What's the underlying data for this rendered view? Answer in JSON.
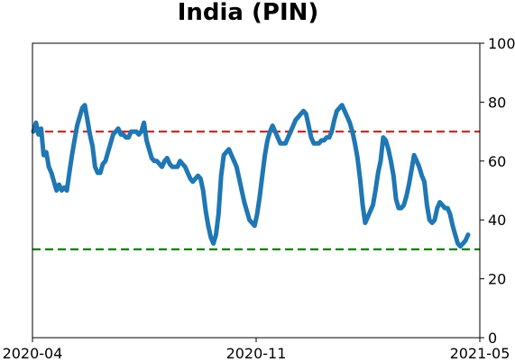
{
  "chart_data": {
    "type": "line",
    "title": "India (PIN)",
    "xlabel": "",
    "ylabel": "",
    "ylim": [
      0,
      100
    ],
    "y_axis_side": "right",
    "y_ticks": [
      "0",
      "20",
      "40",
      "60",
      "80",
      "100"
    ],
    "x_ticks": [
      "2020-04",
      "2020-11",
      "2021-05"
    ],
    "grid": false,
    "legend": "none",
    "line_color": "#1f77b4",
    "reference_lines": [
      {
        "value": 70,
        "color": "#d62728",
        "style": "dashed"
      },
      {
        "value": 30,
        "color": "#008000",
        "style": "dashed"
      }
    ],
    "series": [
      {
        "values": [
          70,
          73,
          69,
          71,
          62,
          63,
          58,
          56,
          53,
          50,
          52,
          50,
          51,
          50,
          56,
          62,
          67,
          72,
          75,
          78,
          79,
          74,
          69,
          65,
          58,
          56,
          56,
          59,
          60,
          63,
          66,
          69,
          70,
          71,
          69,
          69,
          68,
          68,
          70,
          70,
          70,
          69,
          70,
          73,
          67,
          64,
          61,
          60,
          60,
          59,
          58,
          60,
          61,
          59,
          58,
          58,
          58,
          60,
          59,
          58,
          56,
          54,
          53,
          54,
          55,
          54,
          50,
          43,
          38,
          34,
          32,
          35,
          42,
          55,
          62,
          63,
          64,
          62,
          60,
          58,
          54,
          50,
          46,
          43,
          40,
          39,
          38,
          42,
          48,
          55,
          62,
          67,
          70,
          72,
          70,
          68,
          66,
          66,
          66,
          68,
          70,
          72,
          74,
          75,
          76,
          77,
          76,
          72,
          68,
          66,
          66,
          66,
          67,
          67,
          68,
          68,
          70,
          74,
          77,
          78,
          79,
          77,
          75,
          73,
          70,
          66,
          61,
          54,
          45,
          39,
          41,
          43,
          45,
          50,
          56,
          60,
          68,
          67,
          64,
          60,
          55,
          47,
          44,
          44,
          45,
          48,
          52,
          57,
          62,
          60,
          58,
          55,
          53,
          45,
          40,
          39,
          40,
          44,
          46,
          45,
          44,
          44,
          42,
          38,
          35,
          32,
          31,
          32,
          33,
          35
        ]
      }
    ]
  }
}
